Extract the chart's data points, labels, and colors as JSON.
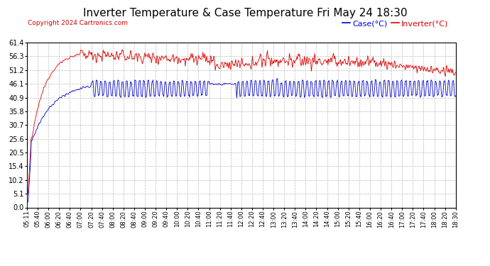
{
  "title": "Inverter Temperature & Case Temperature Fri May 24 18:30",
  "copyright": "Copyright 2024 Cartronics.com",
  "legend_case": "Case(°C)",
  "legend_inverter": "Inverter(°C)",
  "yticks": [
    0.0,
    5.1,
    10.2,
    15.4,
    20.5,
    25.6,
    30.7,
    35.8,
    40.9,
    46.1,
    51.2,
    56.3,
    61.4
  ],
  "ymin": 0.0,
  "ymax": 61.4,
  "xtick_labels": [
    "05:11",
    "05:40",
    "06:00",
    "06:20",
    "06:40",
    "07:00",
    "07:20",
    "07:40",
    "08:00",
    "08:20",
    "08:40",
    "09:00",
    "09:20",
    "09:40",
    "10:00",
    "10:20",
    "10:40",
    "11:00",
    "11:20",
    "11:40",
    "12:00",
    "12:20",
    "12:40",
    "13:00",
    "13:20",
    "13:40",
    "14:00",
    "14:20",
    "14:40",
    "15:00",
    "15:20",
    "15:40",
    "16:00",
    "16:20",
    "16:40",
    "17:00",
    "17:20",
    "17:40",
    "18:00",
    "18:20",
    "18:30"
  ],
  "bg_color": "#ffffff",
  "grid_color": "#bbbbbb",
  "case_color": "#dd0000",
  "inverter_color": "#0000cc",
  "title_fontsize": 11,
  "copyright_fontsize": 6.5,
  "legend_fontsize": 8,
  "tick_fontsize": 6,
  "ytick_fontsize": 7
}
